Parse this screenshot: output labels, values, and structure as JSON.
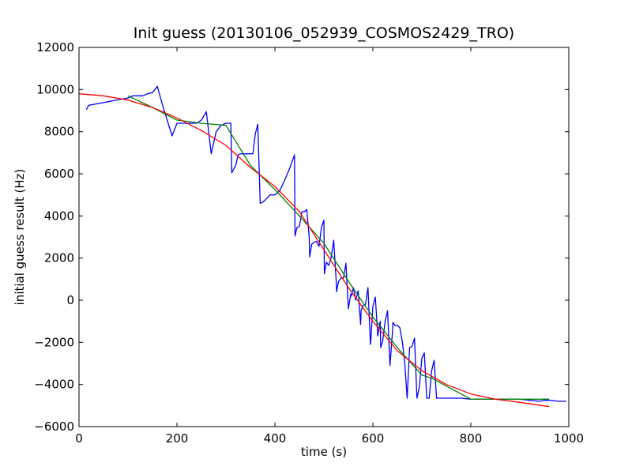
{
  "chart_data": {
    "type": "line",
    "title": "Init guess (20130106_052939_COSMOS2429_TRO)",
    "xlabel": "time (s)",
    "ylabel": "initial guess result (Hz)",
    "xlim": [
      0,
      1000
    ],
    "ylim": [
      -6000,
      12000
    ],
    "xticks": [
      0,
      200,
      400,
      600,
      800,
      1000
    ],
    "yticks": [
      -6000,
      -4000,
      -2000,
      0,
      2000,
      4000,
      6000,
      8000,
      10000,
      12000
    ],
    "grid": false,
    "legend": "none",
    "series": [
      {
        "color": "#0000ff",
        "x": [
          15,
          20,
          100,
          110,
          130,
          140,
          150,
          160,
          170,
          190,
          200,
          205,
          220,
          240,
          250,
          260,
          270,
          280,
          290,
          300,
          310,
          312,
          320,
          325,
          330,
          340,
          350,
          355,
          360,
          365,
          370,
          375,
          380,
          390,
          400,
          410,
          420,
          430,
          440,
          441,
          445,
          450,
          455,
          460,
          465,
          470,
          471,
          475,
          480,
          485,
          490,
          495,
          500,
          501,
          505,
          510,
          515,
          520,
          525,
          526,
          530,
          535,
          540,
          545,
          550,
          555,
          556,
          560,
          565,
          570,
          575,
          576,
          580,
          585,
          590,
          595,
          596,
          600,
          605,
          610,
          615,
          616,
          620,
          625,
          630,
          635,
          640,
          641,
          645,
          650,
          655,
          660,
          665,
          670,
          675,
          680,
          685,
          690,
          695,
          700,
          705,
          710,
          715,
          720,
          725,
          730,
          735,
          740,
          741,
          750,
          780,
          800,
          850,
          900,
          940,
          950,
          960,
          980,
          995
        ],
        "y": [
          9050,
          9250,
          9600,
          9700,
          9700,
          9800,
          9850,
          10150,
          9300,
          7800,
          8400,
          8400,
          8400,
          8400,
          8550,
          8950,
          6950,
          8000,
          8300,
          8400,
          8400,
          6050,
          6400,
          6900,
          6950,
          6950,
          6950,
          6950,
          7900,
          8350,
          4600,
          4650,
          4750,
          5000,
          5000,
          5200,
          5700,
          6250,
          6900,
          3050,
          3450,
          3500,
          4200,
          4200,
          4300,
          3000,
          2050,
          2650,
          2750,
          2800,
          2550,
          3450,
          3800,
          1250,
          1800,
          1650,
          2050,
          2850,
          950,
          400,
          900,
          1050,
          1050,
          1750,
          -400,
          300,
          200,
          600,
          0,
          450,
          -1150,
          -500,
          -250,
          -200,
          600,
          -2100,
          -1850,
          -300,
          150,
          -1700,
          -1000,
          -2250,
          -1950,
          -1000,
          -500,
          -3100,
          -1500,
          -1050,
          -1200,
          -1200,
          -1300,
          -1950,
          -2950,
          -4650,
          -2250,
          -2200,
          -1800,
          -4650,
          -4100,
          -2750,
          -2500,
          -4650,
          -4650,
          -3350,
          -2850,
          -4650,
          -4650,
          -4650,
          -4650,
          -4650,
          -4650,
          -4700,
          -4700,
          -4700,
          -4800,
          -4750,
          -4750,
          -4800,
          -4800
        ]
      },
      {
        "color": "#008000",
        "x": [
          100,
          150,
          200,
          250,
          300,
          350,
          400,
          450,
          500,
          550,
          600,
          650,
          700,
          720,
          800,
          850,
          900,
          960
        ],
        "y": [
          9700,
          9150,
          8550,
          8400,
          8300,
          6400,
          5250,
          4000,
          2700,
          900,
          -800,
          -2250,
          -3550,
          -3700,
          -4700,
          -4700,
          -4700,
          -4700
        ]
      },
      {
        "color": "#ff0000",
        "x": [
          0,
          50,
          100,
          150,
          200,
          250,
          300,
          350,
          400,
          450,
          500,
          550,
          600,
          650,
          700,
          750,
          800,
          850,
          900,
          960
        ],
        "y": [
          9800,
          9700,
          9500,
          9150,
          8650,
          8050,
          7350,
          6300,
          5400,
          4200,
          2400,
          600,
          -1000,
          -2400,
          -3350,
          -4000,
          -4450,
          -4700,
          -4850,
          -5050
        ]
      }
    ]
  }
}
